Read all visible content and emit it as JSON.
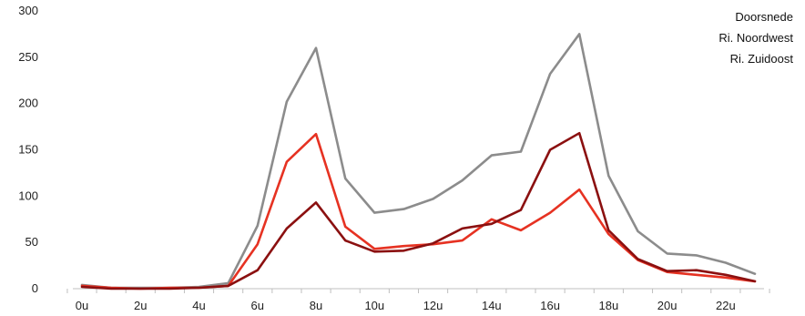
{
  "chart_data": {
    "type": "line",
    "title": "",
    "xlabel": "",
    "ylabel": "",
    "x": [
      "0u",
      "1u",
      "2u",
      "3u",
      "4u",
      "5u",
      "6u",
      "7u",
      "8u",
      "9u",
      "10u",
      "11u",
      "12u",
      "13u",
      "14u",
      "15u",
      "16u",
      "17u",
      "18u",
      "19u",
      "20u",
      "21u",
      "22u",
      "23u"
    ],
    "x_tick_labels": [
      "0u",
      "2u",
      "4u",
      "6u",
      "8u",
      "10u",
      "12u",
      "14u",
      "16u",
      "18u",
      "20u",
      "22u"
    ],
    "y_ticks": [
      "0",
      "50",
      "100",
      "150",
      "200",
      "250",
      "300"
    ],
    "ylim": [
      0,
      300
    ],
    "grid": false,
    "legend_position": "top-right",
    "series": [
      {
        "name": "Doorsnede",
        "color": "#8c8c8c",
        "values": [
          4,
          1,
          1,
          1,
          2,
          6,
          68,
          202,
          260,
          119,
          82,
          86,
          97,
          117,
          144,
          148,
          232,
          275,
          122,
          62,
          38,
          36,
          28,
          16
        ]
      },
      {
        "name": "Ri. Noordwest",
        "color": "#e63222",
        "values": [
          3,
          1,
          0,
          1,
          1,
          3,
          48,
          137,
          167,
          67,
          43,
          46,
          48,
          52,
          75,
          63,
          82,
          107,
          59,
          31,
          18,
          15,
          12,
          8
        ]
      },
      {
        "name": "Ri. Zuidoost",
        "color": "#8b1010",
        "values": [
          2,
          0,
          0,
          0,
          1,
          3,
          20,
          65,
          93,
          52,
          40,
          41,
          49,
          65,
          70,
          85,
          150,
          168,
          63,
          32,
          19,
          20,
          15,
          8
        ]
      }
    ]
  }
}
